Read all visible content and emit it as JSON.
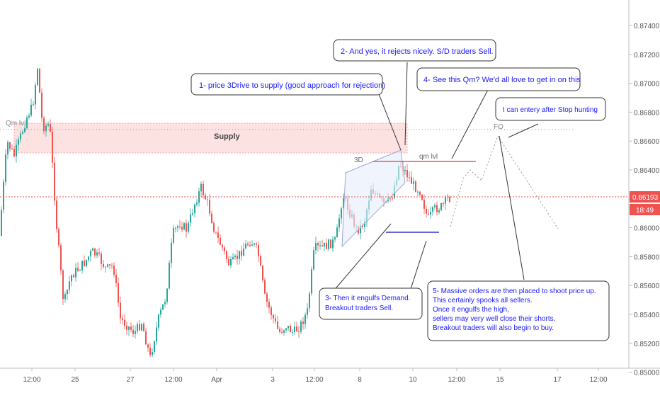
{
  "chart_data": {
    "type": "candlestick",
    "price_axis": {
      "ticks": [
        "0.87400",
        "0.87200",
        "0.87000",
        "0.86800",
        "0.86600",
        "0.86400",
        "0.86200",
        "0.86000",
        "0.85800",
        "0.85600",
        "0.85400",
        "0.85200",
        "0.85000"
      ],
      "range": [
        0.8496,
        0.8754
      ]
    },
    "time_axis": {
      "ticks": [
        "12:00",
        "25",
        "27",
        "12:00",
        "Apr",
        "3",
        "12:00",
        "8",
        "10",
        "12:00",
        "15",
        "17",
        "12:00"
      ]
    },
    "last_price": {
      "value": "0.86193",
      "countdown": "18:49"
    },
    "candles": [],
    "zones": {
      "supply_label": "Supply",
      "qm_left_label": "Qm lvl",
      "qm_right_label": "qm lvl",
      "drive_label": "3D",
      "fo_label": "FO"
    },
    "annotations": {
      "a1": "1- price 3Drive to supply (good approach for rejection)",
      "a2": "2- And yes, it rejects nicely. S/D traders Sell.",
      "a3": [
        "3- Then it engulfs Demand.",
        "Breakout traders Sell."
      ],
      "a4": "4- See this Qm? We'd all love to get in on this",
      "a5": [
        "5- Massive orders are then placed to shoot price up.",
        "This certainly spooks all sellers.",
        "Once it engulfs the high,",
        "sellers may very well close their shorts.",
        "Breakout traders will also begin to buy."
      ],
      "a6": "I can entery after Stop hunting"
    },
    "colors": {
      "up": "#26a69a",
      "down": "#ef5350",
      "text_blue": "#1a1aff",
      "price_line": "#ef5350",
      "demand": "#3333cc",
      "accent": "#2962ff"
    }
  }
}
